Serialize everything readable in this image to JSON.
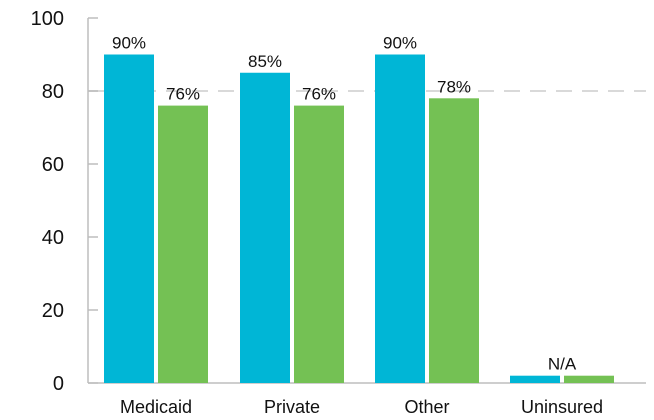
{
  "chart_data": {
    "type": "bar",
    "title": "",
    "xlabel": "",
    "ylabel": "",
    "categories": [
      "Medicaid",
      "Private",
      "Other",
      "Uninsured"
    ],
    "ylim": [
      0,
      100
    ],
    "yticks": [
      0,
      20,
      40,
      60,
      80,
      100
    ],
    "reference_line": 80,
    "grid": false,
    "legend": "none",
    "series": [
      {
        "color": "#00b6d6",
        "values": [
          90,
          85,
          90,
          2
        ],
        "labels": [
          "90%",
          "85%",
          "90%",
          ""
        ]
      },
      {
        "color": "#74c154",
        "values": [
          76,
          76,
          78,
          2
        ],
        "labels": [
          "76%",
          "76%",
          "78%",
          ""
        ]
      }
    ],
    "annotations": [
      {
        "category": "Uninsured",
        "text": "N/A"
      }
    ],
    "colors": {
      "axis": "#bdbdbd",
      "reference_line": "#d9d9d9",
      "text": "#111111"
    }
  }
}
